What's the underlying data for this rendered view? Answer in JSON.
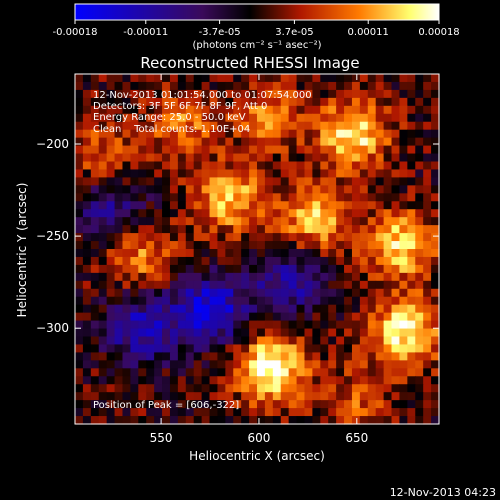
{
  "chart_data": {
    "type": "heatmap",
    "title": "Reconstructed RHESSI Image",
    "xlabel": "Heliocentric X (arcsec)",
    "ylabel": "Heliocentric Y (arcsec)",
    "xlim": [
      506,
      692
    ],
    "ylim": [
      -352,
      -162
    ],
    "x_ticks": [
      550,
      600,
      650
    ],
    "y_ticks": [
      -200,
      -250,
      -300
    ],
    "grid": false,
    "colorbar": {
      "tick_labels": [
        "-0.00018",
        "-0.00011",
        "-3.7e-05",
        "3.7e-05",
        "0.00011",
        "0.00018"
      ],
      "tick_values": [
        -0.00018,
        -0.00011,
        -3.7e-05,
        3.7e-05,
        0.00011,
        0.00018
      ],
      "range": [
        -0.00018,
        0.00018
      ],
      "units_label": "(photons cm⁻² s⁻¹ asec⁻²)",
      "colors": [
        "#0000ff",
        "#3a0a5a",
        "#000000",
        "#b01800",
        "#ff7a00",
        "#ffff70",
        "#ffffff"
      ]
    },
    "annotations": [
      "12-Nov-2013 01:01:54.000 to 01:07:54.000",
      "Detectors: 3F 5F 6F 7F 8F 9F, Att 0",
      "Energy Range: 25.0 - 50.0 keV",
      "Clean    Total counts: 1.10E+04"
    ],
    "peak_label": "Position of Peak = [606,-322]",
    "peak_position": [
      606,
      -322
    ],
    "bright_regions": [
      {
        "x": 606,
        "y": -322,
        "intensity": 1.0
      },
      {
        "x": 675,
        "y": -302,
        "intensity": 0.9
      },
      {
        "x": 672,
        "y": -255,
        "intensity": 0.8
      },
      {
        "x": 648,
        "y": -195,
        "intensity": 0.85
      },
      {
        "x": 585,
        "y": -230,
        "intensity": 0.7
      },
      {
        "x": 628,
        "y": -240,
        "intensity": 0.7
      },
      {
        "x": 540,
        "y": -260,
        "intensity": 0.55
      },
      {
        "x": 560,
        "y": -190,
        "intensity": 0.5
      },
      {
        "x": 605,
        "y": -185,
        "intensity": 0.5
      },
      {
        "x": 520,
        "y": -205,
        "intensity": 0.4
      },
      {
        "x": 650,
        "y": -340,
        "intensity": 0.4
      }
    ],
    "dark_regions": [
      {
        "x": 575,
        "y": -290,
        "intensity": -0.9
      },
      {
        "x": 540,
        "y": -300,
        "intensity": -0.7
      },
      {
        "x": 615,
        "y": -275,
        "intensity": -0.6
      },
      {
        "x": 525,
        "y": -235,
        "intensity": -0.5
      }
    ]
  },
  "footer_timestamp": "12-Nov-2013 04:23"
}
